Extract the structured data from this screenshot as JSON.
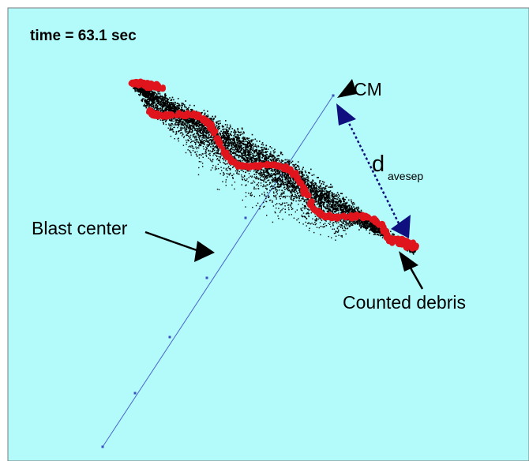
{
  "labels": {
    "time": "time = 63.1 sec",
    "cm": "CM",
    "d_main": "d",
    "d_sub": "avesep",
    "blast_center": "Blast center",
    "counted_debris": "Counted debris"
  },
  "colors": {
    "background": "#b3fafa",
    "frame": "#7a7a7a",
    "debris": "#000000",
    "counted_debris": "#e0141c",
    "trajectory": "#4a64c8",
    "separation": "#10107a",
    "arrows": "#000000"
  }
}
